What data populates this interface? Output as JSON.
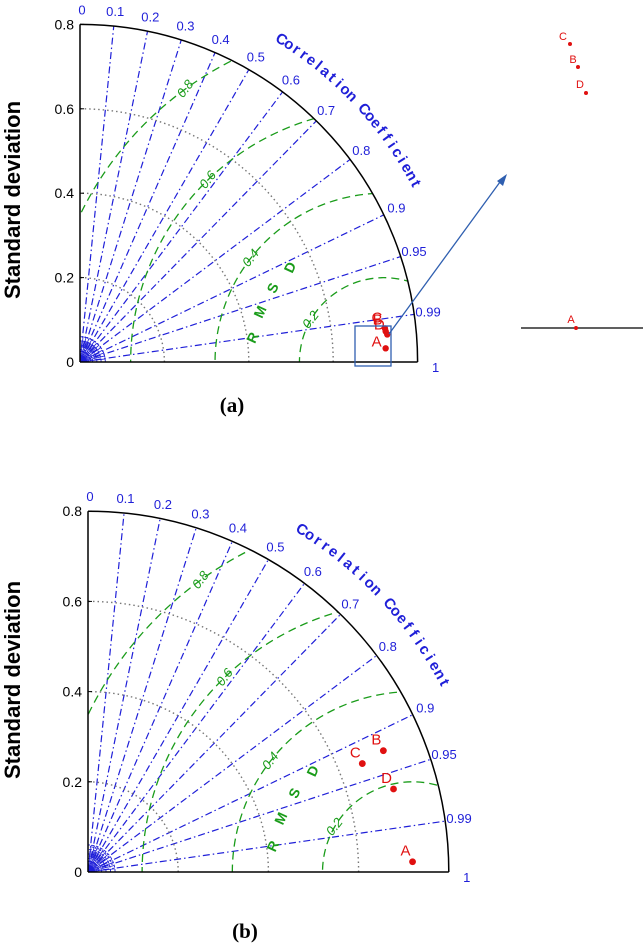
{
  "captions": {
    "a": "(a)",
    "b": "(b)"
  },
  "colors": {
    "correlation": "#1f1fd8",
    "rmsd": "#1a9c1a",
    "std_ref": "#777777",
    "points": "#e01010",
    "axes": "#000000"
  },
  "zoom_inset": {
    "points": [
      "A",
      "B",
      "C",
      "D"
    ]
  },
  "chart_data": [
    {
      "type": "taylor-diagram",
      "panel": "(a)",
      "ylabel": "Standard deviation",
      "std_ticks": [
        "0",
        "0.2",
        "0.4",
        "0.6",
        "0.8"
      ],
      "std_range": [
        0,
        0.8
      ],
      "correlation_title": "Correlation Coefficient",
      "correlation_ticks": [
        "0",
        "0.1",
        "0.2",
        "0.3",
        "0.4",
        "0.5",
        "0.6",
        "0.7",
        "0.8",
        "0.9",
        "0.95",
        "0.99",
        "1"
      ],
      "rmsd_label": "RMSD",
      "rmsd_ticks": [
        "0.2",
        "0.4",
        "0.6",
        "0.8"
      ],
      "reference_std": 0.72,
      "points": [
        {
          "label": "A",
          "std": 0.725,
          "corr": 0.999
        },
        {
          "label": "B",
          "std": 0.728,
          "corr": 0.995
        },
        {
          "label": "C",
          "std": 0.727,
          "corr": 0.994
        },
        {
          "label": "D",
          "std": 0.731,
          "corr": 0.996
        }
      ]
    },
    {
      "type": "taylor-diagram",
      "panel": "(b)",
      "ylabel": "Standard deviation",
      "std_ticks": [
        "0",
        "0.2",
        "0.4",
        "0.6",
        "0.8"
      ],
      "std_range": [
        0,
        0.8
      ],
      "correlation_title": "Correlation Coefficient",
      "correlation_ticks": [
        "0",
        "0.1",
        "0.2",
        "0.3",
        "0.4",
        "0.5",
        "0.6",
        "0.7",
        "0.8",
        "0.9",
        "0.95",
        "0.99",
        "1"
      ],
      "rmsd_label": "RMSD",
      "rmsd_ticks": [
        "0.2",
        "0.4",
        "0.6",
        "0.8"
      ],
      "reference_std": 0.72,
      "points": [
        {
          "label": "A",
          "std": 0.72,
          "corr": 0.9995
        },
        {
          "label": "B",
          "std": 0.708,
          "corr": 0.925
        },
        {
          "label": "C",
          "std": 0.654,
          "corr": 0.93
        },
        {
          "label": "D",
          "std": 0.702,
          "corr": 0.965
        }
      ]
    }
  ]
}
